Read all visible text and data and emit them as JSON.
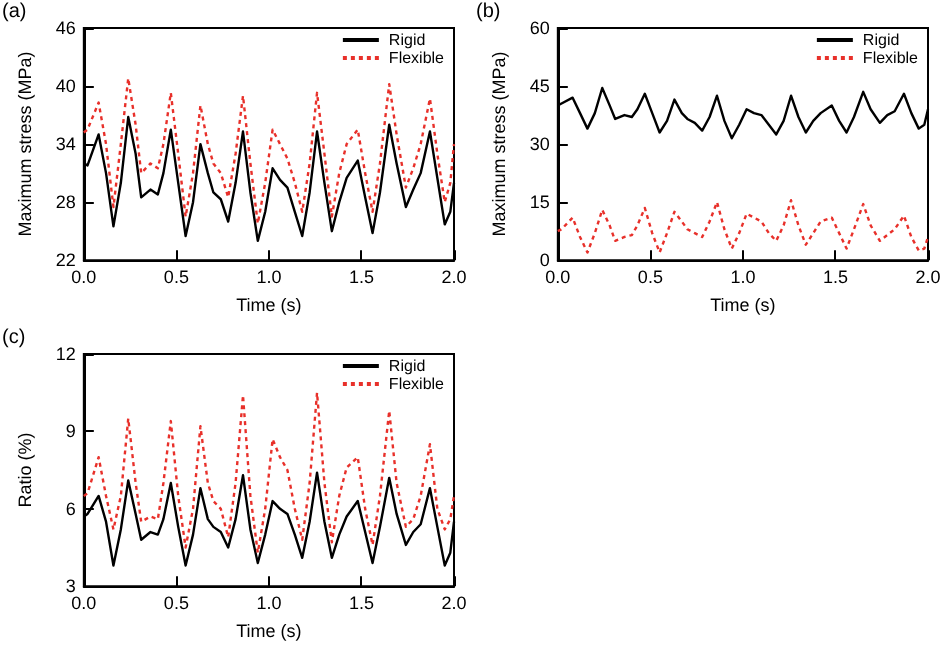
{
  "chart_data": [
    {
      "type": "line",
      "title": "(a)",
      "xlabel": "Time (s)",
      "ylabel": "Maximum stress (MPa)",
      "xlim": [
        0,
        2
      ],
      "xticks": [
        {
          "value": 0,
          "label": "0.0"
        },
        {
          "value": 0.5,
          "label": "0.5"
        },
        {
          "value": 1,
          "label": "1.0"
        },
        {
          "value": 1.5,
          "label": "1.5"
        },
        {
          "value": 2,
          "label": "2.0"
        }
      ],
      "ylim": [
        22,
        46
      ],
      "yticks": [
        22,
        28,
        34,
        40,
        46
      ],
      "grid": false,
      "legend": "top right",
      "marker": "none",
      "x": [
        0,
        0.02,
        0.08,
        0.12,
        0.16,
        0.2,
        0.24,
        0.28,
        0.31,
        0.36,
        0.4,
        0.43,
        0.47,
        0.51,
        0.55,
        0.59,
        0.63,
        0.67,
        0.7,
        0.74,
        0.78,
        0.82,
        0.86,
        0.9,
        0.94,
        0.98,
        1.02,
        1.06,
        1.1,
        1.14,
        1.18,
        1.22,
        1.26,
        1.3,
        1.34,
        1.38,
        1.42,
        1.48,
        1.52,
        1.56,
        1.6,
        1.65,
        1.69,
        1.74,
        1.78,
        1.82,
        1.87,
        1.91,
        1.95,
        1.98,
        2.0
      ],
      "series": [
        {
          "name": "Rigid",
          "color": "#000000",
          "line_style": "solid",
          "values": [
            32,
            31.8,
            35,
            31,
            25.5,
            30,
            36.8,
            33,
            28.5,
            29.3,
            28.8,
            31,
            35.5,
            30,
            24.5,
            28,
            34,
            31,
            29,
            28.3,
            26,
            30,
            35.3,
            29,
            24,
            27,
            31.5,
            30.3,
            29.5,
            27,
            24.5,
            29,
            35.3,
            30,
            25,
            28,
            30.5,
            32.3,
            28.5,
            24.8,
            29,
            36,
            32,
            27.5,
            29.3,
            31,
            35.3,
            30.5,
            25.7,
            27,
            30
          ]
        },
        {
          "name": "Flexible",
          "color": "#e8302a",
          "line_style": "dotted",
          "values": [
            35.2,
            35.5,
            38.3,
            34,
            27.5,
            34,
            40.8,
            36,
            31,
            32,
            31.5,
            34,
            39.3,
            33,
            26.5,
            31,
            38,
            34,
            32,
            31,
            28.5,
            33,
            39,
            32,
            25.8,
            30,
            35.5,
            34,
            32.5,
            30,
            27,
            32,
            39.3,
            33,
            26.5,
            31,
            34,
            35.5,
            31,
            27,
            32,
            40.2,
            35,
            29.5,
            31.5,
            34,
            38.7,
            33,
            28,
            30,
            34
          ]
        }
      ]
    },
    {
      "type": "line",
      "title": "(b)",
      "xlabel": "Time (s)",
      "ylabel": "Maximum stress (MPa)",
      "xlim": [
        0,
        2
      ],
      "xticks": [
        {
          "value": 0,
          "label": "0.0"
        },
        {
          "value": 0.5,
          "label": "0.5"
        },
        {
          "value": 1,
          "label": "1.0"
        },
        {
          "value": 1.5,
          "label": "1.5"
        },
        {
          "value": 2,
          "label": "2.0"
        }
      ],
      "ylim": [
        0,
        60
      ],
      "yticks": [
        0,
        15,
        30,
        45,
        60
      ],
      "grid": false,
      "legend": "top right",
      "marker": "none",
      "x": [
        0,
        0.02,
        0.08,
        0.12,
        0.16,
        0.2,
        0.24,
        0.28,
        0.31,
        0.36,
        0.4,
        0.43,
        0.47,
        0.51,
        0.55,
        0.59,
        0.63,
        0.67,
        0.7,
        0.74,
        0.78,
        0.82,
        0.86,
        0.9,
        0.94,
        0.98,
        1.02,
        1.06,
        1.1,
        1.14,
        1.18,
        1.22,
        1.26,
        1.3,
        1.34,
        1.38,
        1.42,
        1.48,
        1.52,
        1.56,
        1.6,
        1.65,
        1.69,
        1.74,
        1.78,
        1.82,
        1.87,
        1.91,
        1.95,
        1.98,
        2.0
      ],
      "series": [
        {
          "name": "Rigid",
          "color": "#000000",
          "line_style": "solid",
          "values": [
            40,
            40.5,
            42,
            38,
            34,
            38,
            44.5,
            40,
            36.5,
            37.5,
            37,
            39,
            43,
            38,
            33,
            36,
            41.5,
            38,
            36.5,
            35.5,
            33.5,
            37,
            42.5,
            36,
            31.5,
            35,
            39,
            38,
            37.5,
            35,
            32.5,
            36,
            42.5,
            37,
            33,
            36,
            38,
            40,
            36,
            33,
            37,
            43.5,
            39,
            35.5,
            37.5,
            38.5,
            43,
            38,
            34,
            35,
            39
          ]
        },
        {
          "name": "Flexible",
          "color": "#e8302a",
          "line_style": "dotted",
          "values": [
            7.5,
            8,
            11,
            6,
            2,
            7,
            13,
            9,
            5,
            6,
            6.5,
            9,
            13.5,
            7,
            2,
            7,
            12.5,
            10,
            8,
            7,
            6,
            10,
            15,
            8,
            3,
            7,
            12,
            11,
            10,
            7,
            5,
            9,
            15.5,
            9,
            4,
            7,
            10,
            11,
            7,
            3,
            8,
            14.5,
            9,
            5,
            6.5,
            8,
            11.5,
            6,
            2.5,
            3,
            6
          ]
        }
      ]
    },
    {
      "type": "line",
      "title": "(c)",
      "xlabel": "Time (s)",
      "ylabel": "Ratio (%)",
      "xlim": [
        0,
        2
      ],
      "xticks": [
        {
          "value": 0,
          "label": "0.0"
        },
        {
          "value": 0.5,
          "label": "0.5"
        },
        {
          "value": 1,
          "label": "1.0"
        },
        {
          "value": 1.5,
          "label": "1.5"
        },
        {
          "value": 2,
          "label": "2.0"
        }
      ],
      "ylim": [
        3,
        12
      ],
      "yticks": [
        3,
        6,
        9,
        12
      ],
      "grid": false,
      "legend": "top right",
      "marker": "none",
      "x": [
        0,
        0.02,
        0.08,
        0.12,
        0.16,
        0.2,
        0.24,
        0.28,
        0.31,
        0.36,
        0.4,
        0.43,
        0.47,
        0.51,
        0.55,
        0.59,
        0.63,
        0.67,
        0.7,
        0.74,
        0.78,
        0.82,
        0.86,
        0.9,
        0.94,
        0.98,
        1.02,
        1.06,
        1.1,
        1.14,
        1.18,
        1.22,
        1.26,
        1.3,
        1.34,
        1.38,
        1.42,
        1.48,
        1.52,
        1.56,
        1.6,
        1.65,
        1.69,
        1.74,
        1.78,
        1.82,
        1.87,
        1.91,
        1.95,
        1.98,
        2.0
      ],
      "series": [
        {
          "name": "Rigid",
          "color": "#000000",
          "line_style": "solid",
          "values": [
            5.7,
            5.8,
            6.5,
            5.5,
            3.8,
            5.2,
            7.1,
            5.8,
            4.8,
            5.1,
            5,
            5.6,
            7,
            5.3,
            3.8,
            5,
            6.8,
            5.6,
            5.3,
            5.1,
            4.5,
            5.6,
            7.3,
            5.2,
            3.9,
            5,
            6.3,
            6,
            5.8,
            5,
            4.1,
            5.5,
            7.4,
            5.5,
            4.1,
            5,
            5.7,
            6.3,
            5.1,
            3.9,
            5.3,
            7.2,
            5.8,
            4.6,
            5.1,
            5.4,
            6.8,
            5.3,
            3.8,
            4.3,
            5.5
          ]
        },
        {
          "name": "Flexible",
          "color": "#e8302a",
          "line_style": "dotted",
          "values": [
            6.5,
            6.6,
            8,
            6.5,
            5.2,
            6.5,
            9.5,
            7,
            5.5,
            5.7,
            5.6,
            7,
            9.4,
            6.5,
            4.5,
            6,
            9.2,
            7,
            6.3,
            6,
            4.9,
            7,
            10.4,
            6.5,
            4.3,
            6,
            8.7,
            8,
            7.5,
            6,
            4.8,
            7,
            10.5,
            7,
            4.7,
            6.5,
            7.6,
            8,
            6,
            4.6,
            6.5,
            9.8,
            7,
            5.3,
            5.6,
            6.5,
            8.5,
            6,
            5.2,
            5.6,
            6.5
          ]
        }
      ]
    }
  ]
}
